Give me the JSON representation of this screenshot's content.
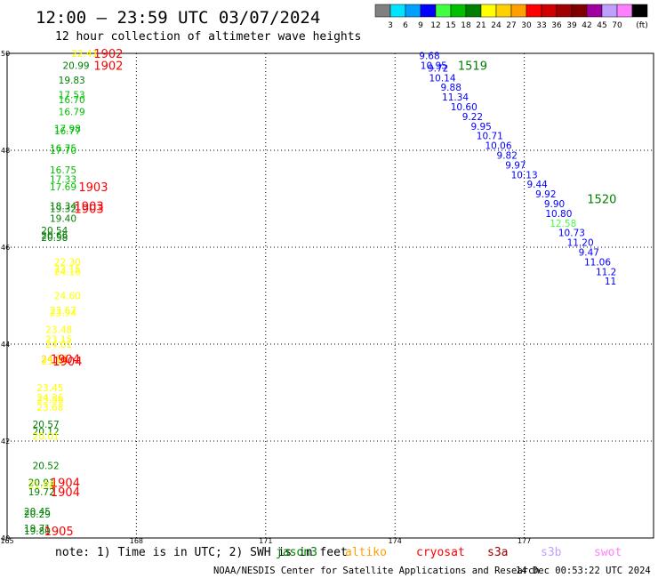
{
  "header": {
    "title": "12:00 – 23:59 UTC 03/07/2024",
    "subtitle": "12 hour collection of altimeter wave heights"
  },
  "colorbar": {
    "labels": [
      "3",
      "6",
      "9",
      "12",
      "15",
      "18",
      "21",
      "24",
      "27",
      "30",
      "33",
      "36",
      "39",
      "42",
      "45",
      "70"
    ],
    "unit": "(ft)",
    "colors": [
      "#808080",
      "#00e5ff",
      "#00a0ff",
      "#0000ff",
      "#40ff40",
      "#00c000",
      "#008000",
      "#ffff00",
      "#ffd000",
      "#ffa000",
      "#ff0000",
      "#d00000",
      "#a00000",
      "#800000",
      "#a000a0",
      "#c0a0ff",
      "#ff80ff",
      "#000000"
    ]
  },
  "footer": {
    "note_prefix": "note:  1) Time is in UTC; 2) SWH is in feet",
    "satellites": [
      {
        "name": "jason3",
        "color": "#008000"
      },
      {
        "name": "altiko",
        "color": "#ffa000"
      },
      {
        "name": "cryosat",
        "color": "#ff0000"
      },
      {
        "name": "s3a",
        "color": "#a00000"
      },
      {
        "name": "s3b",
        "color": "#c0a0ff"
      },
      {
        "name": "swot",
        "color": "#ff80ff"
      }
    ],
    "credit": "NOAA/NESDIS Center for Satellite Applications and Research",
    "timestamp": "14 Dec 00:53:22 UTC 2024"
  },
  "chart_data": {
    "type": "scatter",
    "title": "12:00 – 23:59 UTC 03/07/2024",
    "xlim": [
      165,
      180
    ],
    "ylim": [
      40,
      50
    ],
    "x_ticks": [
      165,
      168,
      171,
      174,
      177
    ],
    "y_ticks": [
      40,
      42,
      44,
      46,
      48,
      50
    ],
    "grid": true,
    "series": [
      {
        "name": "jason3",
        "color_hint": "blue",
        "points": [
          {
            "x": 174.8,
            "y": 49.95,
            "v": "9.68",
            "c": "#0000ff"
          },
          {
            "x": 174.9,
            "y": 49.75,
            "v": "10.95",
            "c": "#0000ff"
          },
          {
            "x": 175.0,
            "y": 49.7,
            "v": "9.72",
            "c": "#0000ff"
          },
          {
            "x": 175.1,
            "y": 49.5,
            "v": "10.14",
            "c": "#0000ff"
          },
          {
            "x": 175.3,
            "y": 49.3,
            "v": "9.88",
            "c": "#0000ff"
          },
          {
            "x": 175.4,
            "y": 49.1,
            "v": "11.34",
            "c": "#0000ff"
          },
          {
            "x": 175.6,
            "y": 48.9,
            "v": "10.60",
            "c": "#0000ff"
          },
          {
            "x": 175.8,
            "y": 48.7,
            "v": "9.22",
            "c": "#0000ff"
          },
          {
            "x": 176.0,
            "y": 48.5,
            "v": "9.95",
            "c": "#0000ff"
          },
          {
            "x": 176.2,
            "y": 48.3,
            "v": "10.71",
            "c": "#0000ff"
          },
          {
            "x": 176.4,
            "y": 48.1,
            "v": "10.06",
            "c": "#0000ff"
          },
          {
            "x": 176.6,
            "y": 47.9,
            "v": "9.82",
            "c": "#0000ff"
          },
          {
            "x": 176.8,
            "y": 47.7,
            "v": "9.97",
            "c": "#0000ff"
          },
          {
            "x": 177.0,
            "y": 47.5,
            "v": "10.13",
            "c": "#0000ff"
          },
          {
            "x": 177.3,
            "y": 47.3,
            "v": "9.44",
            "c": "#0000ff"
          },
          {
            "x": 177.5,
            "y": 47.1,
            "v": "9.92",
            "c": "#0000ff"
          },
          {
            "x": 177.7,
            "y": 46.9,
            "v": "9.90",
            "c": "#0000ff"
          },
          {
            "x": 177.8,
            "y": 46.7,
            "v": "10.80",
            "c": "#0000ff"
          },
          {
            "x": 177.9,
            "y": 46.5,
            "v": "12.58",
            "c": "#40ff40"
          },
          {
            "x": 178.1,
            "y": 46.3,
            "v": "10.73",
            "c": "#0000ff"
          },
          {
            "x": 178.3,
            "y": 46.1,
            "v": "11.20",
            "c": "#0000ff"
          },
          {
            "x": 178.5,
            "y": 45.9,
            "v": "9.47",
            "c": "#0000ff"
          },
          {
            "x": 178.7,
            "y": 45.7,
            "v": "11.06",
            "c": "#0000ff"
          },
          {
            "x": 178.9,
            "y": 45.5,
            "v": "11.2",
            "c": "#0000ff"
          },
          {
            "x": 179.0,
            "y": 45.3,
            "v": "11",
            "c": "#0000ff"
          }
        ]
      },
      {
        "name": "cryosat",
        "color_hint": "greens and yellows",
        "points": [
          {
            "x": 166.8,
            "y": 50.0,
            "v": "22.41",
            "c": "#ffff00"
          },
          {
            "x": 166.6,
            "y": 49.75,
            "v": "20.99",
            "c": "#008000"
          },
          {
            "x": 166.5,
            "y": 49.45,
            "v": "19.83",
            "c": "#008000"
          },
          {
            "x": 166.5,
            "y": 49.15,
            "v": "17.53",
            "c": "#00c000"
          },
          {
            "x": 166.5,
            "y": 49.05,
            "v": "16.70",
            "c": "#00c000"
          },
          {
            "x": 166.5,
            "y": 48.8,
            "v": "16.79",
            "c": "#00c000"
          },
          {
            "x": 166.4,
            "y": 48.45,
            "v": "17.98",
            "c": "#00c000"
          },
          {
            "x": 166.4,
            "y": 48.4,
            "v": "16.77",
            "c": "#00c000"
          },
          {
            "x": 166.3,
            "y": 48.05,
            "v": "16.75",
            "c": "#00c000"
          },
          {
            "x": 166.3,
            "y": 48.0,
            "v": "17.70",
            "c": "#00c000"
          },
          {
            "x": 166.3,
            "y": 47.6,
            "v": "16.75",
            "c": "#00c000"
          },
          {
            "x": 166.3,
            "y": 47.4,
            "v": "17.33",
            "c": "#00c000"
          },
          {
            "x": 166.3,
            "y": 47.25,
            "v": "17.69",
            "c": "#00c000"
          },
          {
            "x": 166.3,
            "y": 46.85,
            "v": "18.34",
            "c": "#008000"
          },
          {
            "x": 166.3,
            "y": 46.8,
            "v": "19.32",
            "c": "#008000"
          },
          {
            "x": 166.3,
            "y": 46.6,
            "v": "19.40",
            "c": "#008000"
          },
          {
            "x": 166.1,
            "y": 46.35,
            "v": "20.54",
            "c": "#008000"
          },
          {
            "x": 166.1,
            "y": 46.25,
            "v": "20.66",
            "c": "#008000"
          },
          {
            "x": 166.1,
            "y": 46.2,
            "v": "20.58",
            "c": "#008000"
          },
          {
            "x": 166.4,
            "y": 45.7,
            "v": "22.30",
            "c": "#ffff00"
          },
          {
            "x": 166.4,
            "y": 45.55,
            "v": "23.15",
            "c": "#ffff00"
          },
          {
            "x": 166.4,
            "y": 45.5,
            "v": "24.16",
            "c": "#ffff00"
          },
          {
            "x": 166.4,
            "y": 45.0,
            "v": "24.60",
            "c": "#ffff00"
          },
          {
            "x": 166.3,
            "y": 44.7,
            "v": "23.67",
            "c": "#ffff00"
          },
          {
            "x": 166.3,
            "y": 44.65,
            "v": "23.94",
            "c": "#ffff00"
          },
          {
            "x": 166.2,
            "y": 44.3,
            "v": "23.48",
            "c": "#ffff00"
          },
          {
            "x": 166.2,
            "y": 44.1,
            "v": "23.15",
            "c": "#ffff00"
          },
          {
            "x": 166.2,
            "y": 44.0,
            "v": "24.01",
            "c": "#ffff00"
          },
          {
            "x": 166.1,
            "y": 43.7,
            "v": "24.77",
            "c": "#ffd000"
          },
          {
            "x": 166.1,
            "y": 43.65,
            "v": "23.57",
            "c": "#ffff00"
          },
          {
            "x": 166.0,
            "y": 43.1,
            "v": "23.45",
            "c": "#ffff00"
          },
          {
            "x": 166.0,
            "y": 42.9,
            "v": "24.36",
            "c": "#ffff00"
          },
          {
            "x": 166.0,
            "y": 42.85,
            "v": "23.56",
            "c": "#ffff00"
          },
          {
            "x": 166.0,
            "y": 42.7,
            "v": "23.68",
            "c": "#ffff00"
          },
          {
            "x": 165.9,
            "y": 42.35,
            "v": "20.57",
            "c": "#008000"
          },
          {
            "x": 165.9,
            "y": 42.2,
            "v": "20.12",
            "c": "#008000"
          },
          {
            "x": 165.9,
            "y": 42.1,
            "v": "20.01",
            "c": "#ffff00"
          },
          {
            "x": 165.9,
            "y": 41.5,
            "v": "20.52",
            "c": "#008000"
          },
          {
            "x": 165.8,
            "y": 41.15,
            "v": "20.91",
            "c": "#008000"
          },
          {
            "x": 165.8,
            "y": 41.1,
            "v": "21.08",
            "c": "#ffff00"
          },
          {
            "x": 165.8,
            "y": 40.95,
            "v": "19.72",
            "c": "#008000"
          },
          {
            "x": 165.7,
            "y": 40.55,
            "v": "20.45",
            "c": "#008000"
          },
          {
            "x": 165.7,
            "y": 40.5,
            "v": "20.29",
            "c": "#008000"
          },
          {
            "x": 165.7,
            "y": 40.2,
            "v": "19.71",
            "c": "#008000"
          },
          {
            "x": 165.7,
            "y": 40.15,
            "v": "19.80",
            "c": "#008000"
          }
        ]
      }
    ],
    "pass_times": [
      {
        "label": "1902",
        "x": 167.35,
        "y": 50.0,
        "c": "#ff0000"
      },
      {
        "label": "1902",
        "x": 167.35,
        "y": 49.75,
        "c": "#ff0000"
      },
      {
        "label": "1903",
        "x": 167.0,
        "y": 47.25,
        "c": "#ff0000"
      },
      {
        "label": "1903",
        "x": 166.9,
        "y": 46.85,
        "c": "#ff0000"
      },
      {
        "label": "1903",
        "x": 166.9,
        "y": 46.8,
        "c": "#ff0000"
      },
      {
        "label": "1904",
        "x": 166.35,
        "y": 43.7,
        "c": "#ff0000"
      },
      {
        "label": "1904",
        "x": 166.4,
        "y": 43.65,
        "c": "#ff0000"
      },
      {
        "label": "1904",
        "x": 166.35,
        "y": 41.15,
        "c": "#ff0000"
      },
      {
        "label": "1904",
        "x": 166.35,
        "y": 40.95,
        "c": "#ff0000"
      },
      {
        "label": "1905",
        "x": 166.2,
        "y": 40.15,
        "c": "#ff0000"
      },
      {
        "label": "1519",
        "x": 175.8,
        "y": 49.75,
        "c": "#008000"
      },
      {
        "label": "1520",
        "x": 178.8,
        "y": 47.0,
        "c": "#008000"
      }
    ]
  }
}
